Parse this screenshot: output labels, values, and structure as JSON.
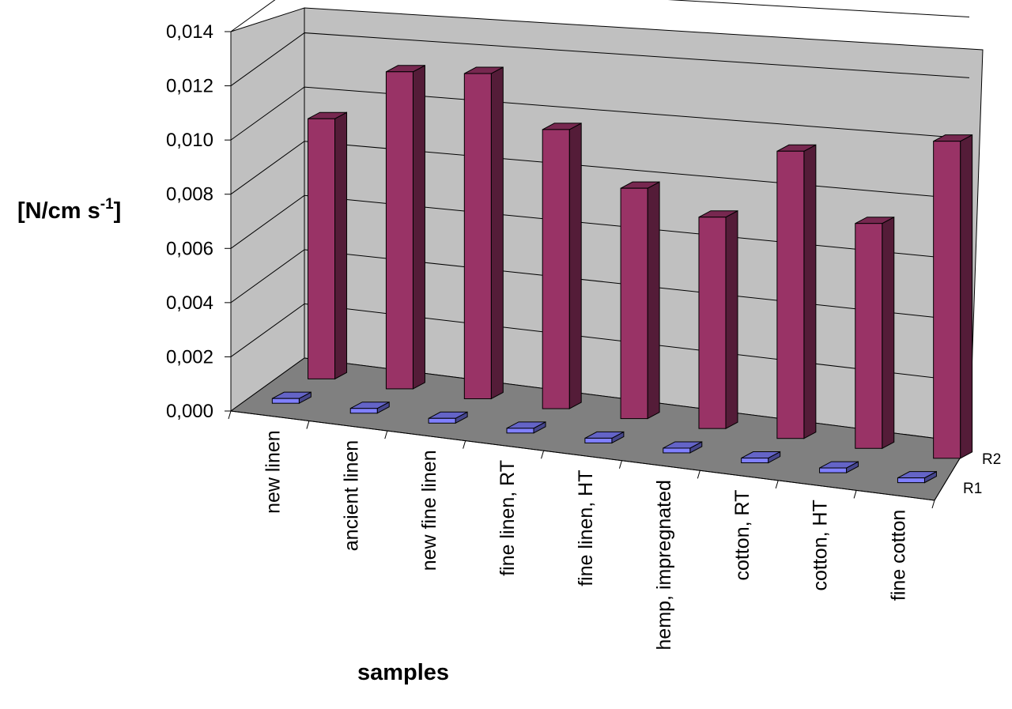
{
  "chart_data": {
    "type": "bar",
    "style": "3d-column",
    "title": "",
    "xlabel": "samples",
    "ylabel": "[N/cm s",
    "ylabel_sup": "-1",
    "ylabel_end": "]",
    "ylim": [
      0,
      0.014
    ],
    "yticks": [
      "0,000",
      "0,002",
      "0,004",
      "0,006",
      "0,008",
      "0,010",
      "0,012",
      "0,014"
    ],
    "grid": true,
    "categories": [
      "new linen",
      "ancient linen",
      "new fine linen",
      "fine linen, RT",
      "fine linen, HT",
      "hemp, impregnated",
      "cotton, RT",
      "cotton, HT",
      "fine cotton"
    ],
    "series": [
      {
        "name": "R1",
        "color": "#8080FF",
        "values": [
          0.0001,
          0.0001,
          0.0001,
          0.0001,
          0.0001,
          0.0001,
          0.0001,
          0.0001,
          0.0001
        ]
      },
      {
        "name": "R2",
        "color": "#993366",
        "values": [
          0.0096,
          0.0117,
          0.012,
          0.0103,
          0.0085,
          0.0078,
          0.0106,
          0.0083,
          0.0117
        ]
      }
    ]
  }
}
